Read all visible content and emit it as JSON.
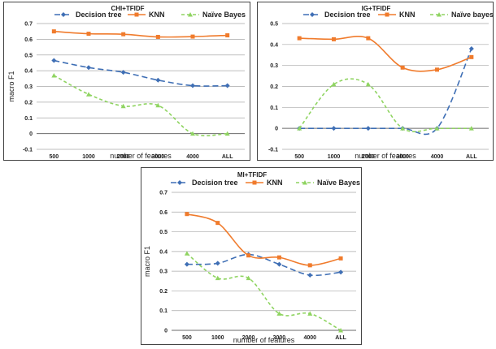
{
  "chart_data": [
    {
      "type": "line",
      "title": "CHI+TFIDF",
      "xlabel": "number of features",
      "ylabel": "macro F1",
      "categories": [
        "500",
        "1000",
        "2000",
        "3000",
        "4000",
        "ALL"
      ],
      "ylim": [
        -0.1,
        0.7
      ],
      "yticks": [
        "-0.1",
        "0",
        "0.1",
        "0.2",
        "0.3",
        "0.4",
        "0.5",
        "0.6",
        "0.7"
      ],
      "grid": true,
      "legend": "top",
      "series": [
        {
          "name": "Decision tree",
          "values": [
            0.465,
            0.42,
            0.39,
            0.34,
            0.305,
            0.305
          ],
          "color": "#3f6fb5",
          "marker": "diamond",
          "dash": "long-dash"
        },
        {
          "name": "KNN",
          "values": [
            0.65,
            0.635,
            0.632,
            0.615,
            0.617,
            0.625
          ],
          "color": "#f07b2c",
          "marker": "square",
          "dash": "solid"
        },
        {
          "name": "Naïve Bayes",
          "values": [
            0.37,
            0.25,
            0.175,
            0.18,
            0.0,
            0.0
          ],
          "color": "#8fd461",
          "marker": "triangle",
          "dash": "dash"
        }
      ]
    },
    {
      "type": "line",
      "title": "IG+TFIDF",
      "xlabel": "number of features",
      "ylabel": "",
      "categories": [
        "500",
        "1000",
        "2000",
        "3000",
        "4000",
        "ALL"
      ],
      "ylim": [
        -0.1,
        0.5
      ],
      "yticks": [
        "-0.1",
        "0",
        "0.1",
        "0.2",
        "0.3",
        "0.4",
        "0.5"
      ],
      "grid": true,
      "legend": "top",
      "series": [
        {
          "name": "Decision tree",
          "values": [
            0.0,
            0.0,
            0.0,
            0.0,
            0.0,
            0.38
          ],
          "color": "#3f6fb5",
          "marker": "diamond",
          "dash": "long-dash"
        },
        {
          "name": "KNN",
          "values": [
            0.43,
            0.425,
            0.43,
            0.29,
            0.28,
            0.34
          ],
          "color": "#f07b2c",
          "marker": "square",
          "dash": "solid"
        },
        {
          "name": "Naïve bayes",
          "values": [
            0.0,
            0.21,
            0.21,
            0.0,
            0.0,
            0.0
          ],
          "color": "#8fd461",
          "marker": "triangle",
          "dash": "dash"
        }
      ]
    },
    {
      "type": "line",
      "title": "MI+TFIDF",
      "xlabel": "number of features",
      "ylabel": "macro F1",
      "categories": [
        "500",
        "1000",
        "2000",
        "3000",
        "4000",
        "ALL"
      ],
      "ylim": [
        0,
        0.7
      ],
      "yticks": [
        "0",
        "0.1",
        "0.2",
        "0.3",
        "0.4",
        "0.5",
        "0.6",
        "0.7"
      ],
      "grid": true,
      "legend": "top",
      "series": [
        {
          "name": "Decision tree",
          "values": [
            0.335,
            0.34,
            0.385,
            0.335,
            0.28,
            0.295
          ],
          "color": "#3f6fb5",
          "marker": "diamond",
          "dash": "long-dash"
        },
        {
          "name": "KNN",
          "values": [
            0.59,
            0.545,
            0.38,
            0.37,
            0.33,
            0.365
          ],
          "color": "#f07b2c",
          "marker": "square",
          "dash": "solid"
        },
        {
          "name": "Naïve Bayes",
          "values": [
            0.39,
            0.265,
            0.265,
            0.085,
            0.085,
            0.0
          ],
          "color": "#8fd461",
          "marker": "triangle",
          "dash": "dash"
        }
      ]
    }
  ]
}
